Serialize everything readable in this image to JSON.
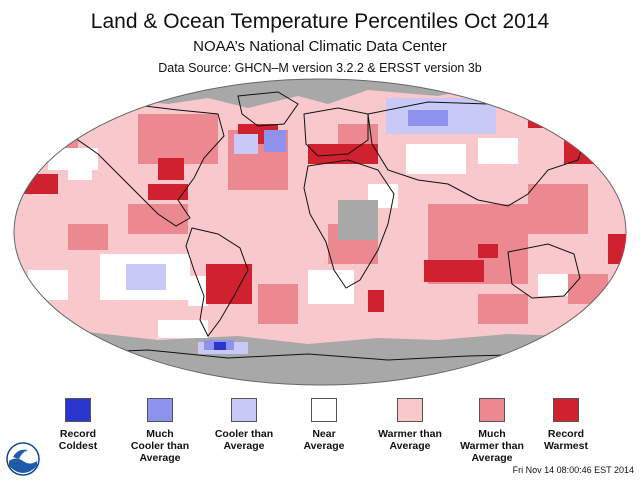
{
  "header": {
    "title": "Land & Ocean Temperature Percentiles Oct 2014",
    "subtitle": "NOAA’s National Climatic Data Center",
    "source": "Data Source: GHCN–M version 3.2.2 & ERSST version 3b"
  },
  "colors": {
    "record_coldest": "#2a35d0",
    "much_cooler": "#8f92ec",
    "cooler": "#c9c9f7",
    "near_average": "#ffffff",
    "warmer": "#f8c8cc",
    "much_warmer": "#ec8890",
    "record_warmest": "#d0222e",
    "no_data": "#a8a8a8"
  },
  "legend": [
    {
      "label": "Record\nColdest",
      "color": "#2a35d0"
    },
    {
      "label": "Much\nCooler than\nAverage",
      "color": "#8f92ec"
    },
    {
      "label": "Cooler than\nAverage",
      "color": "#c9c9f7"
    },
    {
      "label": "Near\nAverage",
      "color": "#ffffff"
    },
    {
      "label": "Warmer than\nAverage",
      "color": "#f8c8cc"
    },
    {
      "label": "Much\nWarmer than\nAverage",
      "color": "#ec8890"
    },
    {
      "label": "Record\nWarmest",
      "color": "#d0222e"
    }
  ],
  "logo_text": "NOAA",
  "timestamp": "Fri Nov 14 08:00:46 EST 2014"
}
